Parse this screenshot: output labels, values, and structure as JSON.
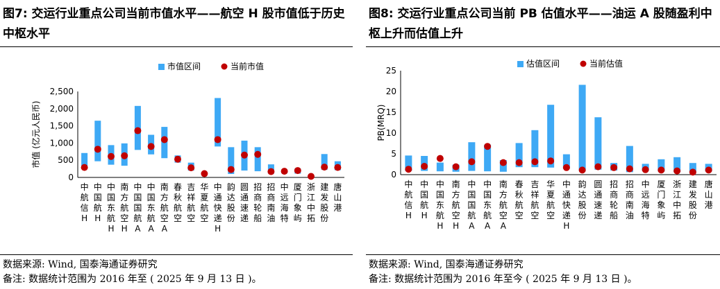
{
  "left": {
    "title": "图7: 交运行业重点公司当前市值水平——航空 H 股市值低于历史中枢水平",
    "source": "数据来源: Wind, 国泰海通证券研究",
    "note": "备注: 数据统计范围为 2016 年至 ( 2025 年 9 月 13 日 )。",
    "chart_data": {
      "type": "range-bar",
      "ylabel": "市值 (亿元人民币)",
      "ylim": [
        0,
        2500
      ],
      "yticks": [
        "0",
        "500",
        "1,000",
        "1,500",
        "2,000",
        "2,500"
      ],
      "ytick_values": [
        0,
        500,
        1000,
        1500,
        2000,
        2500
      ],
      "categories": [
        "中航信H",
        "中国航H",
        "中国东航H",
        "南方航空H",
        "中国国航A",
        "中国东航A",
        "南方航空A",
        "春秋航空",
        "吉祥航空",
        "华夏航空",
        "中通快递H",
        "韵达股份",
        "圆通速递",
        "招商轮船",
        "招商南油",
        "中远海特",
        "厦门象屿",
        "浙江中拓",
        "建发股份",
        "唐山港"
      ],
      "series": [
        {
          "name": "市值区间",
          "color": "#3ea9f5",
          "values": [
            [
              300,
              710
            ],
            [
              470,
              1650
            ],
            [
              370,
              940
            ],
            [
              340,
              990
            ],
            [
              800,
              2080
            ],
            [
              670,
              1240
            ],
            [
              560,
              1470
            ],
            [
              430,
              640
            ],
            [
              200,
              430
            ],
            [
              110,
              150
            ],
            [
              900,
              2310
            ],
            [
              100,
              880
            ],
            [
              200,
              1070
            ],
            [
              180,
              880
            ],
            [
              110,
              380
            ],
            [
              120,
              220
            ],
            [
              110,
              260
            ],
            [
              20,
              30
            ],
            [
              220,
              680
            ],
            [
              210,
              470
            ]
          ]
        },
        {
          "name": "当前市值",
          "color": "#c00000",
          "values": [
            290,
            820,
            610,
            630,
            1360,
            900,
            1100,
            530,
            280,
            110,
            1100,
            230,
            650,
            670,
            170,
            180,
            200,
            30,
            300,
            290
          ]
        }
      ],
      "legend": "top"
    }
  },
  "right": {
    "title": "图8: 交运行业重点公司当前 PB 估值水平——油运 A 股随盈利中枢上升而估值上升",
    "source": "数据来源: Wind, 国泰海通证券研究",
    "note": "备注: 数据统计范围为 2016 年至今 ( 2025 年 9 月 13 日 )。",
    "chart_data": {
      "type": "range-bar",
      "ylabel": "PB(MRQ)",
      "ylim": [
        0,
        25
      ],
      "yticks": [
        "0",
        "5",
        "10",
        "15",
        "20",
        "25"
      ],
      "ytick_values": [
        0,
        5,
        10,
        15,
        20,
        25
      ],
      "categories": [
        "中航信H",
        "中国航H",
        "中国东航H",
        "南方航空H",
        "中国国航A",
        "中国东航A",
        "南方航空A",
        "春秋航空",
        "吉祥航空",
        "华夏航空",
        "中通快递H",
        "韵达股份",
        "圆通速递",
        "招商轮船",
        "招商南油",
        "中远海特",
        "厦门象屿",
        "浙江中拓",
        "建发股份",
        "唐山港"
      ],
      "series": [
        {
          "name": "估值区间",
          "color": "#3ea9f5",
          "values": [
            [
              0.9,
              4.6
            ],
            [
              0.9,
              4.5
            ],
            [
              0.8,
              2.9
            ],
            [
              0.7,
              2.4
            ],
            [
              0.9,
              7.8
            ],
            [
              0.8,
              7.2
            ],
            [
              0.7,
              3.5
            ],
            [
              1.8,
              7.6
            ],
            [
              1.8,
              10.7
            ],
            [
              1.7,
              16.8
            ],
            [
              1.4,
              4.9
            ],
            [
              0.9,
              21.6
            ],
            [
              1.2,
              13.8
            ],
            [
              1.0,
              2.8
            ],
            [
              0.6,
              6.9
            ],
            [
              0.9,
              2.6
            ],
            [
              0.8,
              3.7
            ],
            [
              0.6,
              4.2
            ],
            [
              0.5,
              2.8
            ],
            [
              0.8,
              2.6
            ]
          ]
        },
        {
          "name": "当前估值",
          "color": "#c00000",
          "values": [
            1.3,
            2.0,
            3.9,
            1.9,
            3.1,
            6.8,
            2.9,
            2.9,
            3.1,
            3.3,
            1.7,
            1.1,
            1.9,
            1.7,
            1.4,
            1.2,
            1.1,
            0.9,
            0.6,
            1.1
          ]
        }
      ],
      "legend": "top"
    }
  }
}
